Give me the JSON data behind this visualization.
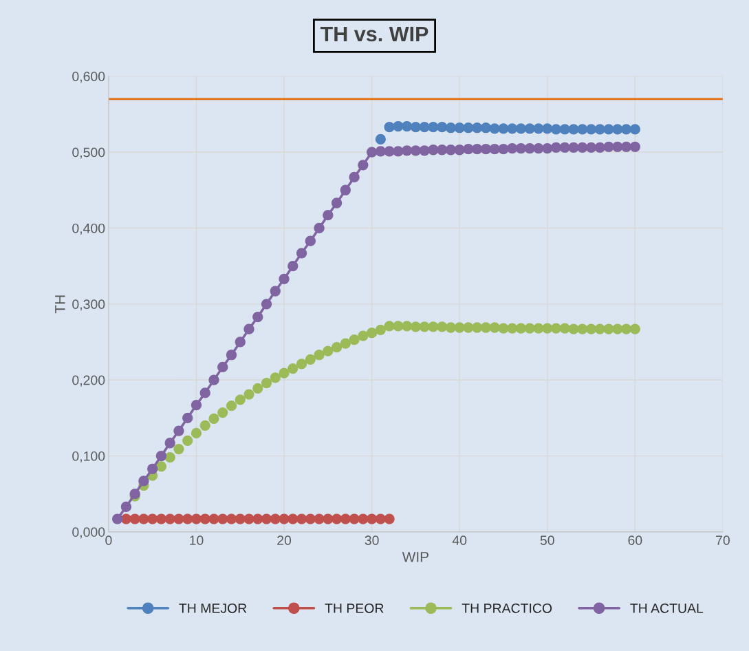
{
  "chart_data": {
    "type": "line",
    "title": "TH vs. WIP",
    "xlabel": "WIP",
    "ylabel": "TH",
    "xlim": [
      0,
      70
    ],
    "xticks": [
      0,
      10,
      20,
      30,
      40,
      50,
      60,
      70
    ],
    "ylim": [
      0,
      0.6
    ],
    "yticks": [
      {
        "value": 0,
        "label": "0,000"
      },
      {
        "value": 0.1,
        "label": "0,100"
      },
      {
        "value": 0.2,
        "label": "0,200"
      },
      {
        "value": 0.3,
        "label": "0,300"
      },
      {
        "value": 0.4,
        "label": "0,400"
      },
      {
        "value": 0.5,
        "label": "0,500"
      },
      {
        "value": 0.6,
        "label": "0,600"
      }
    ],
    "grid": true,
    "legend": "bottom",
    "marker": "circle",
    "line_style": "solid",
    "ref_lines": [
      {
        "axis": "y",
        "value": 0.57,
        "color": "#e46c0a"
      }
    ],
    "series": [
      {
        "name": "TH MEJOR",
        "type": "scatter",
        "color": "#4f81bd",
        "x": [
          31,
          32,
          33,
          34,
          35,
          36,
          37,
          38,
          39,
          40,
          41,
          42,
          43,
          44,
          45,
          46,
          47,
          48,
          49,
          50,
          51,
          52,
          53,
          54,
          55,
          56,
          57,
          58,
          59,
          60
        ],
        "values": [
          0.517,
          0.533,
          0.534,
          0.534,
          0.533,
          0.533,
          0.533,
          0.533,
          0.532,
          0.532,
          0.532,
          0.532,
          0.532,
          0.531,
          0.531,
          0.531,
          0.531,
          0.531,
          0.531,
          0.531,
          0.53,
          0.53,
          0.53,
          0.53,
          0.53,
          0.53,
          0.53,
          0.53,
          0.53,
          0.53
        ]
      },
      {
        "name": "TH PEOR",
        "type": "scatter",
        "color": "#c0504d",
        "x": [
          2,
          3,
          4,
          5,
          6,
          7,
          8,
          9,
          10,
          11,
          12,
          13,
          14,
          15,
          16,
          17,
          18,
          19,
          20,
          21,
          22,
          23,
          24,
          25,
          26,
          27,
          28,
          29,
          30,
          31,
          32
        ],
        "values": [
          0.017,
          0.017,
          0.017,
          0.017,
          0.017,
          0.017,
          0.017,
          0.017,
          0.017,
          0.017,
          0.017,
          0.017,
          0.017,
          0.017,
          0.017,
          0.017,
          0.017,
          0.017,
          0.017,
          0.017,
          0.017,
          0.017,
          0.017,
          0.017,
          0.017,
          0.017,
          0.017,
          0.017,
          0.017,
          0.017,
          0.017
        ]
      },
      {
        "name": "TH PRACTICO",
        "type": "scatter",
        "color": "#9bbb59",
        "x": [
          3,
          4,
          5,
          6,
          7,
          8,
          9,
          10,
          11,
          12,
          13,
          14,
          15,
          16,
          17,
          18,
          19,
          20,
          21,
          22,
          23,
          24,
          25,
          26,
          27,
          28,
          29,
          30,
          31,
          32,
          33,
          34,
          35,
          36,
          37,
          38,
          39,
          40,
          41,
          42,
          43,
          44,
          45,
          46,
          47,
          48,
          49,
          50,
          51,
          52,
          53,
          54,
          55,
          56,
          57,
          58,
          59,
          60
        ],
        "values": [
          0.047,
          0.061,
          0.074,
          0.086,
          0.098,
          0.109,
          0.12,
          0.13,
          0.14,
          0.149,
          0.157,
          0.166,
          0.174,
          0.181,
          0.189,
          0.196,
          0.203,
          0.209,
          0.215,
          0.221,
          0.227,
          0.233,
          0.238,
          0.243,
          0.248,
          0.253,
          0.258,
          0.262,
          0.266,
          0.271,
          0.271,
          0.271,
          0.27,
          0.27,
          0.27,
          0.27,
          0.269,
          0.269,
          0.269,
          0.269,
          0.269,
          0.269,
          0.268,
          0.268,
          0.268,
          0.268,
          0.268,
          0.268,
          0.268,
          0.268,
          0.267,
          0.267,
          0.267,
          0.267,
          0.267,
          0.267,
          0.267,
          0.267
        ]
      },
      {
        "name": "TH ACTUAL",
        "color": "#8064a2",
        "x": [
          1,
          2,
          3,
          4,
          5,
          6,
          7,
          8,
          9,
          10,
          11,
          12,
          13,
          14,
          15,
          16,
          17,
          18,
          19,
          20,
          21,
          22,
          23,
          24,
          25,
          26,
          27,
          28,
          29,
          30,
          31,
          32,
          33,
          34,
          35,
          36,
          37,
          38,
          39,
          40,
          41,
          42,
          43,
          44,
          45,
          46,
          47,
          48,
          49,
          50,
          51,
          52,
          53,
          54,
          55,
          56,
          57,
          58,
          59,
          60
        ],
        "values": [
          0.017,
          0.033,
          0.05,
          0.067,
          0.083,
          0.1,
          0.117,
          0.133,
          0.15,
          0.167,
          0.183,
          0.2,
          0.217,
          0.233,
          0.25,
          0.267,
          0.283,
          0.3,
          0.317,
          0.333,
          0.35,
          0.367,
          0.383,
          0.4,
          0.417,
          0.433,
          0.45,
          0.467,
          0.483,
          0.5,
          0.501,
          0.501,
          0.501,
          0.502,
          0.502,
          0.502,
          0.503,
          0.503,
          0.503,
          0.503,
          0.504,
          0.504,
          0.504,
          0.504,
          0.504,
          0.505,
          0.505,
          0.505,
          0.505,
          0.505,
          0.506,
          0.506,
          0.506,
          0.506,
          0.506,
          0.506,
          0.507,
          0.507,
          0.507,
          0.507
        ]
      }
    ]
  }
}
